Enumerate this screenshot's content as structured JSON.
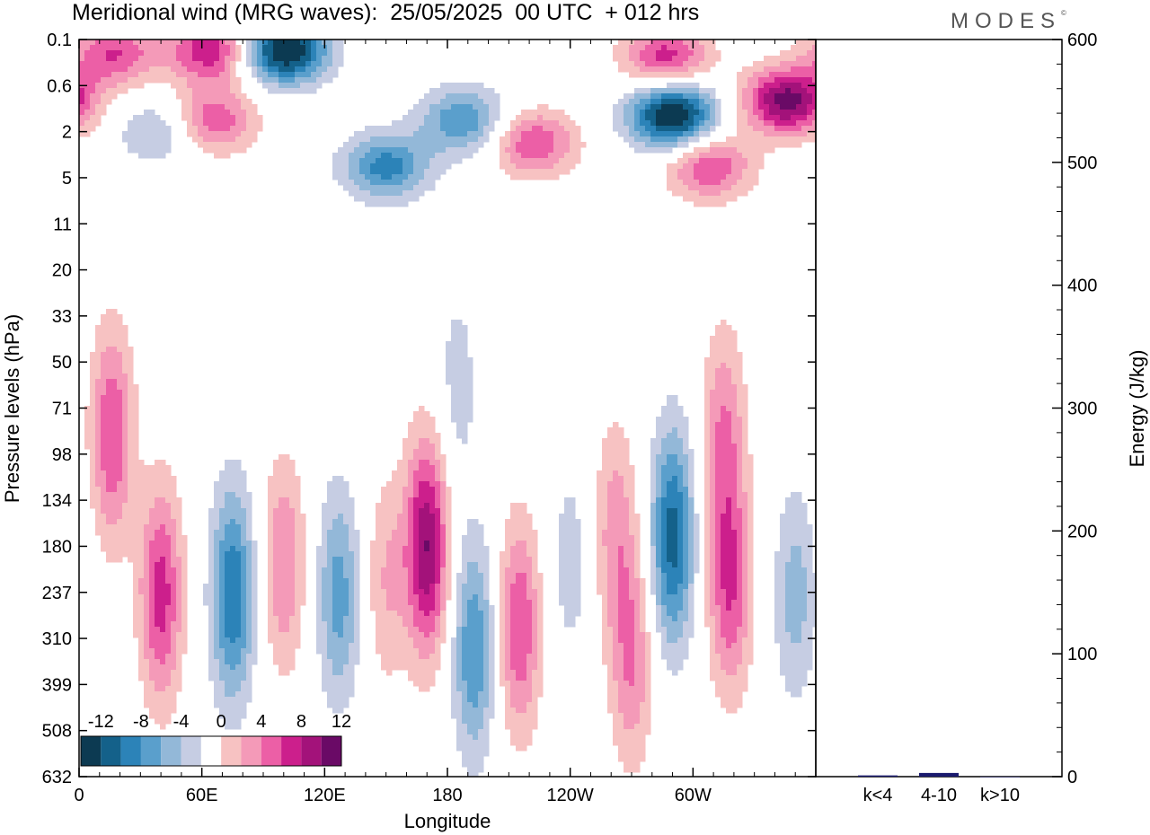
{
  "header": {
    "title": "Meridional wind (MRG waves):  25/05/2025  00 UTC  + 012 hrs",
    "brand": "MODES",
    "brand_mark": "©"
  },
  "chart_data": [
    {
      "type": "heatmap",
      "title": "Meridional wind (MRG waves):  25/05/2025  00 UTC  + 012 hrs",
      "xlabel": "Longitude",
      "ylabel": "Pressure levels (hPa)",
      "x_ticks": [
        "0",
        "60E",
        "120E",
        "180",
        "120W",
        "60W"
      ],
      "x_tick_values": [
        0,
        60,
        120,
        180,
        240,
        300
      ],
      "xlim": [
        0,
        360
      ],
      "y_ticks": [
        "0.1",
        "0.6",
        "2",
        "5",
        "11",
        "20",
        "33",
        "50",
        "71",
        "98",
        "134",
        "180",
        "237",
        "310",
        "399",
        "508",
        "632"
      ],
      "y_scale": "log",
      "colorbar": {
        "labels": [
          "-12",
          "-8",
          "-4",
          "0",
          "4",
          "8",
          "12"
        ],
        "levels": [
          -14,
          -12,
          -10,
          -8,
          -6,
          -4,
          -2,
          2,
          4,
          6,
          8,
          10,
          12,
          14
        ],
        "colors": [
          "#0c3a52",
          "#14618a",
          "#2c83b8",
          "#5a9fcc",
          "#93b8d8",
          "#c6cde3",
          "#ffffff",
          "#f7c2c2",
          "#f49ab8",
          "#ec5fa6",
          "#cc1f8c",
          "#a3127a",
          "#6a0a66"
        ],
        "placement": "bottom-left"
      },
      "features": [
        {
          "lon": 40,
          "p": 240,
          "v": 9
        },
        {
          "lon": 75,
          "p": 240,
          "v": -10
        },
        {
          "lon": 100,
          "p": 200,
          "v": 6
        },
        {
          "lon": 127,
          "p": 240,
          "v": -7
        },
        {
          "lon": 150,
          "p": 220,
          "v": 4
        },
        {
          "lon": 170,
          "p": 180,
          "v": 12
        },
        {
          "lon": 193,
          "p": 330,
          "v": -8
        },
        {
          "lon": 215,
          "p": 290,
          "v": 8
        },
        {
          "lon": 240,
          "p": 200,
          "v": -3
        },
        {
          "lon": 262,
          "p": 160,
          "v": 5
        },
        {
          "lon": 270,
          "p": 350,
          "v": 6
        },
        {
          "lon": 290,
          "p": 170,
          "v": -11
        },
        {
          "lon": 318,
          "p": 230,
          "v": 8
        },
        {
          "lon": 350,
          "p": 240,
          "v": -5
        },
        {
          "lon": 16,
          "p": 85,
          "v": 8
        },
        {
          "lon": 185,
          "p": 60,
          "v": -3
        },
        {
          "lon": 315,
          "p": 85,
          "v": 6
        },
        {
          "lon": 100,
          "p": 0.15,
          "v": -15
        },
        {
          "lon": 65,
          "p": 0.15,
          "v": 10
        },
        {
          "lon": 17,
          "p": 0.17,
          "v": 8
        },
        {
          "lon": 65,
          "p": 1.5,
          "v": 8
        },
        {
          "lon": 150,
          "p": 4,
          "v": -9
        },
        {
          "lon": 188,
          "p": 1.5,
          "v": -8
        },
        {
          "lon": 222,
          "p": 2.5,
          "v": 8
        },
        {
          "lon": 287,
          "p": 0.2,
          "v": 9
        },
        {
          "lon": 290,
          "p": 1.3,
          "v": -15
        },
        {
          "lon": 346,
          "p": 0.9,
          "v": 13
        },
        {
          "lon": 308,
          "p": 4,
          "v": 8
        },
        {
          "lon": 40,
          "p": 2,
          "v": -5
        }
      ]
    },
    {
      "type": "bar",
      "categories": [
        "k<4",
        "4-10",
        "k>10"
      ],
      "values": [
        1,
        3,
        0
      ],
      "ylabel": "Energy (J/kg)",
      "ylim": [
        0,
        600
      ],
      "y_ticks": [
        0,
        100,
        200,
        300,
        400,
        500,
        600
      ],
      "bar_color": "#1a1a6e"
    }
  ]
}
